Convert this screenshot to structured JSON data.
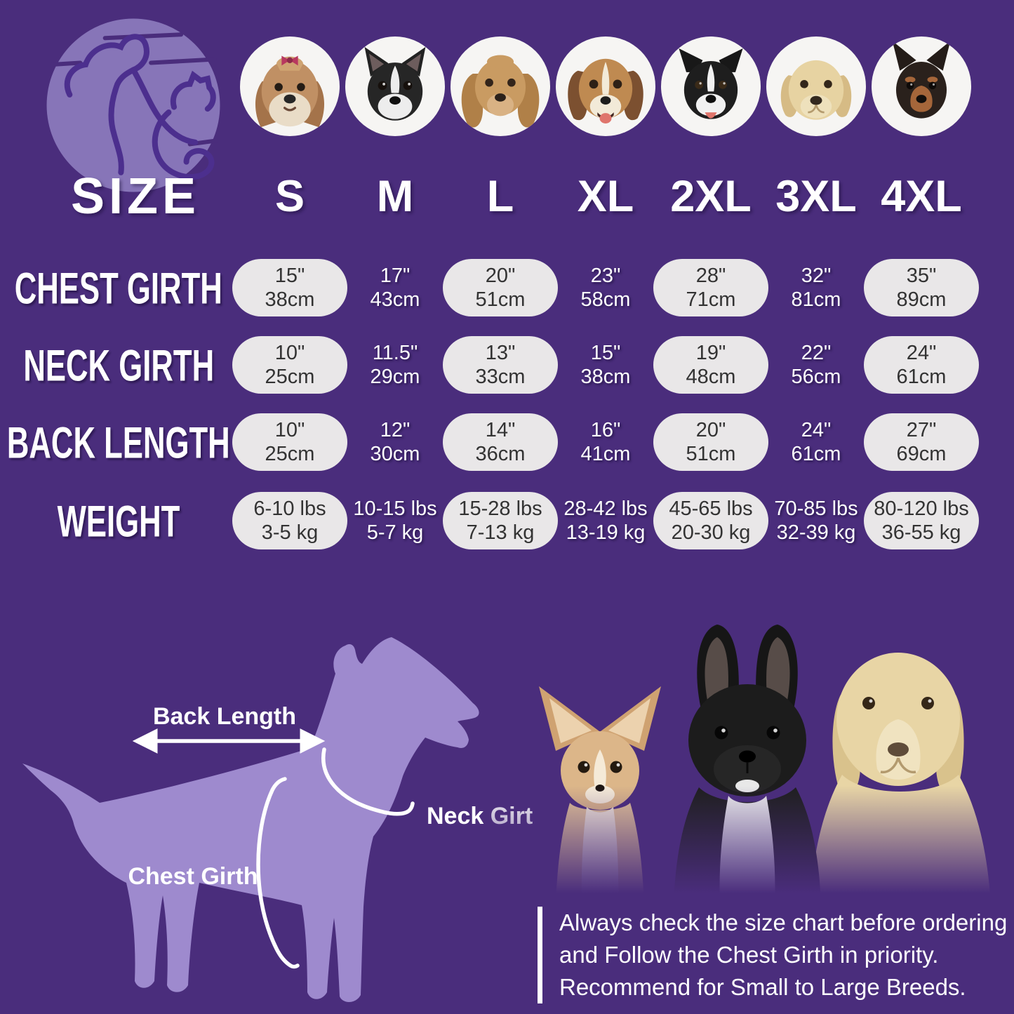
{
  "colors": {
    "background": "#4a2d7c",
    "pill_background": "#e9e7e8",
    "pill_text": "#333333",
    "white_text": "#ffffff",
    "silhouette_purple": "#9e8ace",
    "logo_circle": "#8775b8"
  },
  "breeds": [
    "Shih Tzu",
    "Boston Terrier",
    "Cocker Spaniel",
    "Beagle",
    "Border Collie",
    "Labrador Retriever",
    "Doberman"
  ],
  "size_chart": {
    "size_label": "SIZE",
    "sizes": [
      "S",
      "M",
      "L",
      "XL",
      "2XL",
      "3XL",
      "4XL"
    ],
    "rows": [
      {
        "label": "CHEST GIRTH",
        "values": [
          [
            "15\"",
            "38cm"
          ],
          [
            "17\"",
            "43cm"
          ],
          [
            "20\"",
            "51cm"
          ],
          [
            "23\"",
            "58cm"
          ],
          [
            "28\"",
            "71cm"
          ],
          [
            "32\"",
            "81cm"
          ],
          [
            "35\"",
            "89cm"
          ]
        ]
      },
      {
        "label": "NECK GIRTH",
        "values": [
          [
            "10\"",
            "25cm"
          ],
          [
            "11.5\"",
            "29cm"
          ],
          [
            "13\"",
            "33cm"
          ],
          [
            "15\"",
            "38cm"
          ],
          [
            "19\"",
            "48cm"
          ],
          [
            "22\"",
            "56cm"
          ],
          [
            "24\"",
            "61cm"
          ]
        ]
      },
      {
        "label": "BACK LENGTH",
        "values": [
          [
            "10\"",
            "25cm"
          ],
          [
            "12\"",
            "30cm"
          ],
          [
            "14\"",
            "36cm"
          ],
          [
            "16\"",
            "41cm"
          ],
          [
            "20\"",
            "51cm"
          ],
          [
            "24\"",
            "61cm"
          ],
          [
            "27\"",
            "69cm"
          ]
        ]
      },
      {
        "label": "WEIGHT",
        "values": [
          [
            "6-10 lbs",
            "3-5 kg"
          ],
          [
            "10-15 lbs",
            "5-7 kg"
          ],
          [
            "15-28 lbs",
            "7-13 kg"
          ],
          [
            "28-42 lbs",
            "13-19 kg"
          ],
          [
            "45-65 lbs",
            "20-30 kg"
          ],
          [
            "70-85 lbs",
            "32-39 kg"
          ],
          [
            "80-120 lbs",
            "36-55 kg"
          ]
        ]
      }
    ]
  },
  "diagram": {
    "back_length_label": "Back Length",
    "neck_girth_label": "Neck Girth",
    "chest_girth_label": "Chest Girth"
  },
  "note": {
    "lines": [
      "Always check the size chart before ordering",
      "and Follow the Chest Girth in priority.",
      "Recommend for Small to Large Breeds."
    ]
  },
  "chart_data": {
    "type": "table",
    "title": "SIZE",
    "columns": [
      "SIZE",
      "S",
      "M",
      "L",
      "XL",
      "2XL",
      "3XL",
      "4XL"
    ],
    "rows": [
      [
        "CHEST GIRTH",
        "15\" / 38cm",
        "17\" / 43cm",
        "20\" / 51cm",
        "23\" / 58cm",
        "28\" / 71cm",
        "32\" / 81cm",
        "35\" / 89cm"
      ],
      [
        "NECK GIRTH",
        "10\" / 25cm",
        "11.5\" / 29cm",
        "13\" / 33cm",
        "15\" / 38cm",
        "19\" / 48cm",
        "22\" / 56cm",
        "24\" / 61cm"
      ],
      [
        "BACK LENGTH",
        "10\" / 25cm",
        "12\" / 30cm",
        "14\" / 36cm",
        "16\" / 41cm",
        "20\" / 51cm",
        "24\" / 61cm",
        "27\" / 69cm"
      ],
      [
        "WEIGHT",
        "6-10 lbs / 3-5 kg",
        "10-15 lbs / 5-7 kg",
        "15-28 lbs / 7-13 kg",
        "28-42 lbs / 13-19 kg",
        "45-65 lbs / 20-30 kg",
        "70-85 lbs / 32-39 kg",
        "80-120 lbs / 36-55 kg"
      ]
    ]
  }
}
